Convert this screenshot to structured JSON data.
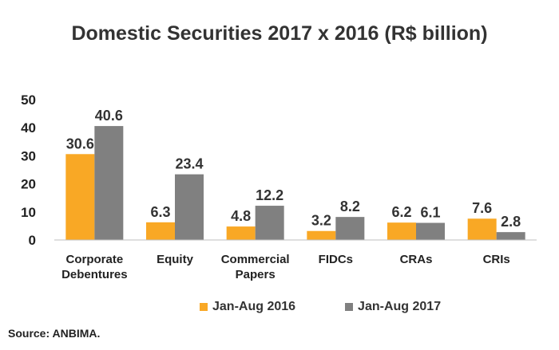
{
  "chart_data": {
    "type": "bar",
    "title": "Domestic Securities 2017 x 2016 (R$ billion)",
    "categories": [
      [
        "Corporate",
        "Debentures"
      ],
      [
        "Equity"
      ],
      [
        "Commercial",
        "Papers"
      ],
      [
        "FIDCs"
      ],
      [
        "CRAs"
      ],
      [
        "CRIs"
      ]
    ],
    "series": [
      {
        "name": "Jan-Aug 2016",
        "color": "#F9A825",
        "values": [
          30.6,
          6.3,
          4.8,
          3.2,
          6.2,
          7.6
        ],
        "labels": [
          "30.6",
          "6.3",
          "4.8",
          "3.2",
          "6.2",
          "7.6"
        ]
      },
      {
        "name": "Jan-Aug 2017",
        "color": "#808080",
        "values": [
          40.6,
          23.4,
          12.2,
          8.2,
          6.1,
          2.8
        ],
        "labels": [
          "40.6",
          "23.4",
          "12.2",
          "8.2",
          "6.1",
          "2.8"
        ]
      }
    ],
    "ylim": [
      0,
      50
    ],
    "yticks": [
      "0",
      "10",
      "20",
      "30",
      "40",
      "50"
    ],
    "grid": false,
    "legend_position": "bottom"
  },
  "source": "Source: ANBIMA."
}
